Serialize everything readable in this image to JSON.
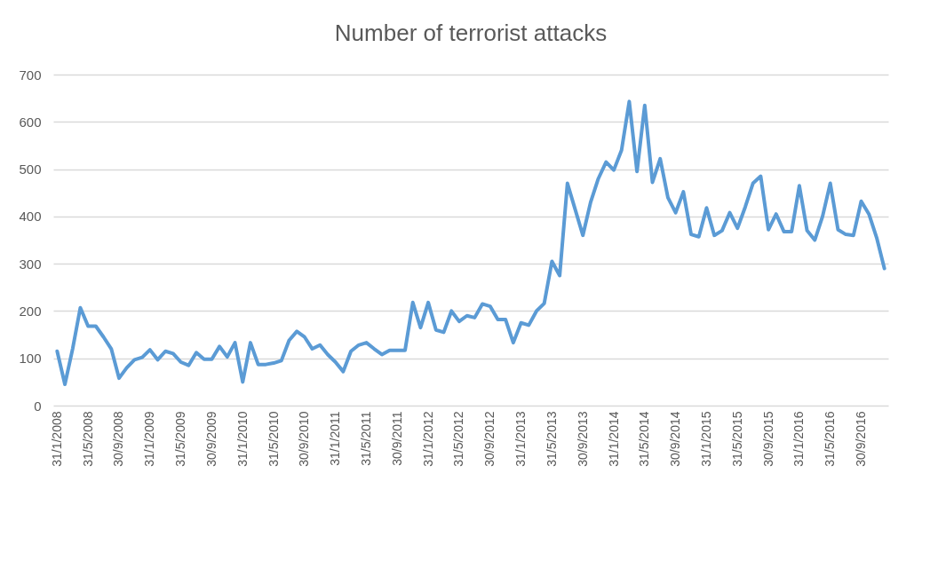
{
  "chart_data": {
    "type": "line",
    "title": "Number of terrorist attacks",
    "categories": [
      "31/1/2008",
      null,
      null,
      null,
      "31/5/2008",
      null,
      null,
      null,
      "30/9/2008",
      null,
      null,
      null,
      "31/1/2009",
      null,
      null,
      null,
      "31/5/2009",
      null,
      null,
      null,
      "30/9/2009",
      null,
      null,
      null,
      "31/1/2010",
      null,
      null,
      null,
      "31/5/2010",
      null,
      null,
      null,
      "30/9/2010",
      null,
      null,
      null,
      "31/1/2011",
      null,
      null,
      null,
      "31/5/2011",
      null,
      null,
      null,
      "30/9/2011",
      null,
      null,
      null,
      "31/1/2012",
      null,
      null,
      null,
      "31/5/2012",
      null,
      null,
      null,
      "30/9/2012",
      null,
      null,
      null,
      "31/1/2013",
      null,
      null,
      null,
      "31/5/2013",
      null,
      null,
      null,
      "30/9/2013",
      null,
      null,
      null,
      "31/1/2014",
      null,
      null,
      null,
      "31/5/2014",
      null,
      null,
      null,
      "30/9/2014",
      null,
      null,
      null,
      "31/1/2015",
      null,
      null,
      null,
      "31/5/2015",
      null,
      null,
      null,
      "30/9/2015",
      null,
      null,
      null,
      "31/1/2016",
      null,
      null,
      null,
      "31/5/2016",
      null,
      null,
      null,
      "30/9/2016",
      null,
      null,
      null
    ],
    "series": [
      {
        "color": "#5b9bd5",
        "values": [
          115,
          45,
          120,
          207,
          168,
          168,
          145,
          120,
          58,
          80,
          97,
          102,
          118,
          97,
          115,
          110,
          92,
          85,
          112,
          98,
          98,
          125,
          103,
          133,
          50,
          133,
          87,
          87,
          90,
          95,
          138,
          157,
          145,
          120,
          128,
          108,
          92,
          72,
          115,
          128,
          133,
          120,
          108,
          117,
          117,
          117,
          218,
          165,
          218,
          160,
          155,
          200,
          178,
          190,
          186,
          215,
          210,
          182,
          182,
          133,
          175,
          170,
          200,
          216,
          305,
          275,
          470,
          415,
          360,
          430,
          480,
          515,
          498,
          540,
          643,
          495,
          635,
          472,
          522,
          440,
          408,
          452,
          362,
          357,
          418,
          360,
          370,
          408,
          375,
          420,
          470,
          485,
          372,
          405,
          368,
          368,
          465,
          370,
          350,
          400,
          470,
          372,
          362,
          360,
          432,
          405,
          355,
          290
        ]
      }
    ],
    "ylim": [
      0,
      700
    ],
    "yticks": [
      0,
      100,
      200,
      300,
      400,
      500,
      600,
      700
    ],
    "grid": "y",
    "marker": "none",
    "line_style": "solid"
  }
}
